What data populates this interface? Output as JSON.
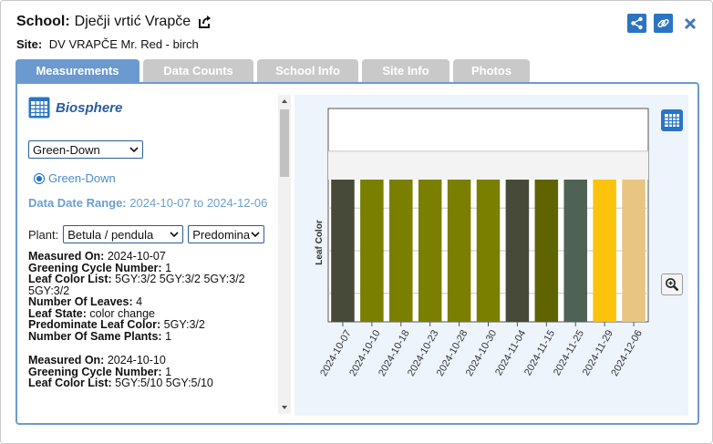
{
  "header": {
    "school_label": "School:",
    "school_name": "Dječji vrtić Vrapče",
    "site_label": "Site:",
    "site_name": "DV VRAPČE Mr. Red - birch"
  },
  "tabs": [
    {
      "label": "Measurements",
      "active": true
    },
    {
      "label": "Data Counts",
      "active": false
    },
    {
      "label": "School Info",
      "active": false
    },
    {
      "label": "Site Info",
      "active": false
    },
    {
      "label": "Photos",
      "active": false
    }
  ],
  "left": {
    "section_title": "Biosphere",
    "protocol_select": "Green-Down",
    "radio_label": "Green-Down",
    "range_label": "Data Date Range:",
    "range_value": "2024-10-07 to 2024-12-06",
    "plant_label": "Plant:",
    "plant_select": "Betula / pendula",
    "plant_select2": "Predomina",
    "records": [
      {
        "measured_on_label": "Measured On:",
        "measured_on": "2024-10-07",
        "cycle_label": "Greening Cycle Number:",
        "cycle": "1",
        "color_list_label": "Leaf Color List:",
        "color_list": "5GY:3/2 5GY:3/2 5GY:3/2 5GY:3/2",
        "leaves_label": "Number Of Leaves:",
        "leaves": "4",
        "state_label": "Leaf State:",
        "state": "color change",
        "predominate_label": "Predominate Leaf Color:",
        "predominate": "5GY:3/2",
        "same_label": "Number Of Same Plants:",
        "same": "1"
      },
      {
        "measured_on_label": "Measured On:",
        "measured_on": "2024-10-10",
        "cycle_label": "Greening Cycle Number:",
        "cycle": "1",
        "color_list_label": "Leaf Color List:",
        "color_list": "5GY:5/10 5GY:5/10"
      }
    ]
  },
  "chart_data": {
    "type": "bar",
    "ylabel": "Leaf Color",
    "categories": [
      "2024-10-07",
      "2024-10-10",
      "2024-10-18",
      "2024-10-23",
      "2024-10-28",
      "2024-10-30",
      "2024-11-04",
      "2024-11-15",
      "2024-11-25",
      "2024-11-29",
      "2024-12-06"
    ],
    "values": [
      1,
      1,
      1,
      1,
      1,
      1,
      1,
      1,
      1,
      1,
      1
    ],
    "colors": [
      "#474a38",
      "#7a7f00",
      "#7a7f00",
      "#7a7f00",
      "#7a7f00",
      "#7a7f00",
      "#474a38",
      "#5f6400",
      "#4f6256",
      "#fbc30c",
      "#e8c682"
    ],
    "ylim": [
      0,
      1.5
    ],
    "grid": true
  },
  "icons": {
    "external": "external-link-icon",
    "share": "share-icon",
    "link": "link-icon",
    "close": "close-icon",
    "table": "table-icon",
    "zoom": "zoom-in-icon"
  }
}
